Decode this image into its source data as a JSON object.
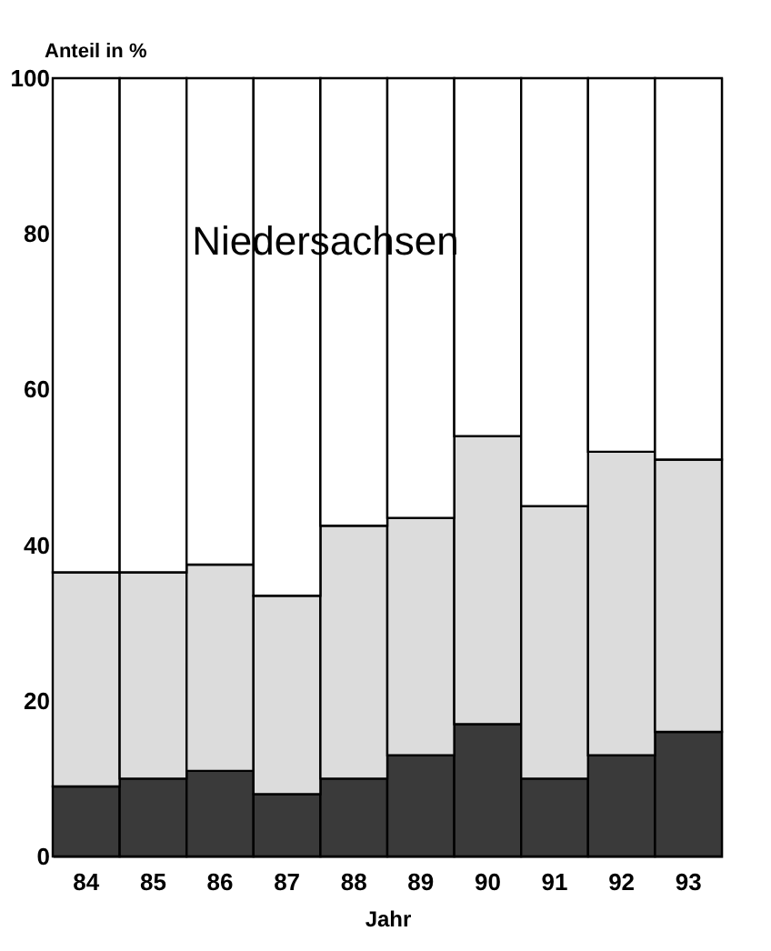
{
  "chart_data": {
    "type": "bar",
    "stacked": true,
    "xlabel": "Jahr",
    "ylabel": "Anteil in %",
    "annotations": [
      "Niedersachsen"
    ],
    "categories": [
      "84",
      "85",
      "86",
      "87",
      "88",
      "89",
      "90",
      "91",
      "92",
      "93"
    ],
    "series": [
      {
        "color": "#3a3a3a",
        "values": [
          9,
          10,
          11,
          8,
          10,
          13,
          17,
          10,
          13,
          16
        ]
      },
      {
        "color": "#dcdcdc",
        "values": [
          27.5,
          26.5,
          26.5,
          25.5,
          32.5,
          30.5,
          37,
          35,
          39,
          35
        ]
      },
      {
        "color": "#ffffff",
        "values": [
          63.5,
          63.5,
          62.5,
          66.5,
          57.5,
          56.5,
          46,
          55,
          48,
          49
        ]
      }
    ],
    "ylim": [
      0,
      100
    ],
    "yticks": [
      0,
      20,
      40,
      60,
      80,
      100
    ]
  }
}
